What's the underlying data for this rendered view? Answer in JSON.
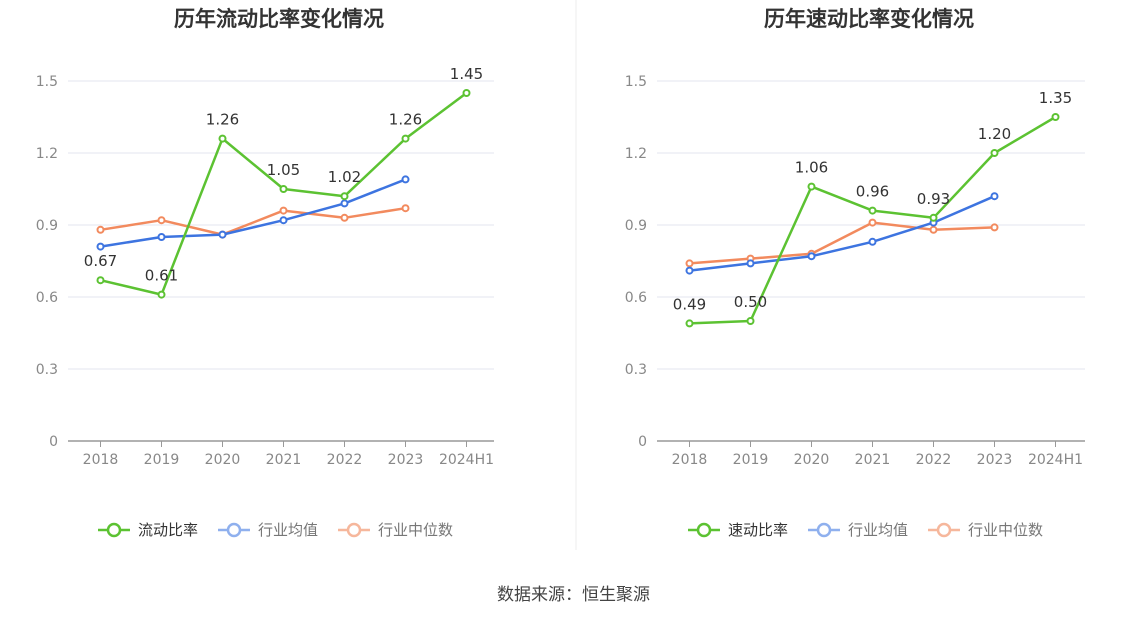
{
  "source_label": "数据来源：恒生聚源",
  "colors": {
    "green": "#5cc232",
    "blue": "#3d74e0",
    "orange": "#f28a5e",
    "axis": "#888888",
    "grid": "#e3e6ef",
    "tick": "#888888"
  },
  "chart_data": [
    {
      "type": "line",
      "title": "历年流动比率变化情况",
      "categories": [
        "2018",
        "2019",
        "2020",
        "2021",
        "2022",
        "2023",
        "2024H1"
      ],
      "ylim": [
        0,
        1.5
      ],
      "yticks": [
        "0",
        "0.3",
        "0.6",
        "0.9",
        "1.2",
        "1.5"
      ],
      "grid": true,
      "legend_position": "bottom",
      "series": [
        {
          "name": "流动比率",
          "color": "#5cc232",
          "values": [
            0.67,
            0.61,
            1.26,
            1.05,
            1.02,
            1.26,
            1.45
          ],
          "labels": [
            "0.67",
            "0.61",
            "1.26",
            "1.05",
            "1.02",
            "1.26",
            "1.45"
          ]
        },
        {
          "name": "行业均值",
          "color": "#3d74e0",
          "values": [
            0.81,
            0.85,
            0.86,
            0.92,
            0.99,
            1.09,
            null
          ]
        },
        {
          "name": "行业中位数",
          "color": "#f28a5e",
          "values": [
            0.88,
            0.92,
            0.86,
            0.96,
            0.93,
            0.97,
            null
          ]
        }
      ]
    },
    {
      "type": "line",
      "title": "历年速动比率变化情况",
      "categories": [
        "2018",
        "2019",
        "2020",
        "2021",
        "2022",
        "2023",
        "2024H1"
      ],
      "ylim": [
        0,
        1.5
      ],
      "yticks": [
        "0",
        "0.3",
        "0.6",
        "0.9",
        "1.2",
        "1.5"
      ],
      "grid": true,
      "legend_position": "bottom",
      "series": [
        {
          "name": "速动比率",
          "color": "#5cc232",
          "values": [
            0.49,
            0.5,
            1.06,
            0.96,
            0.93,
            1.2,
            1.35
          ],
          "labels": [
            "0.49",
            "0.50",
            "1.06",
            "0.96",
            "0.93",
            "1.20",
            "1.35"
          ]
        },
        {
          "name": "行业均值",
          "color": "#3d74e0",
          "values": [
            0.71,
            0.74,
            0.77,
            0.83,
            0.91,
            1.02,
            null
          ]
        },
        {
          "name": "行业中位数",
          "color": "#f28a5e",
          "values": [
            0.74,
            0.76,
            0.78,
            0.91,
            0.88,
            0.89,
            null
          ]
        }
      ]
    }
  ]
}
